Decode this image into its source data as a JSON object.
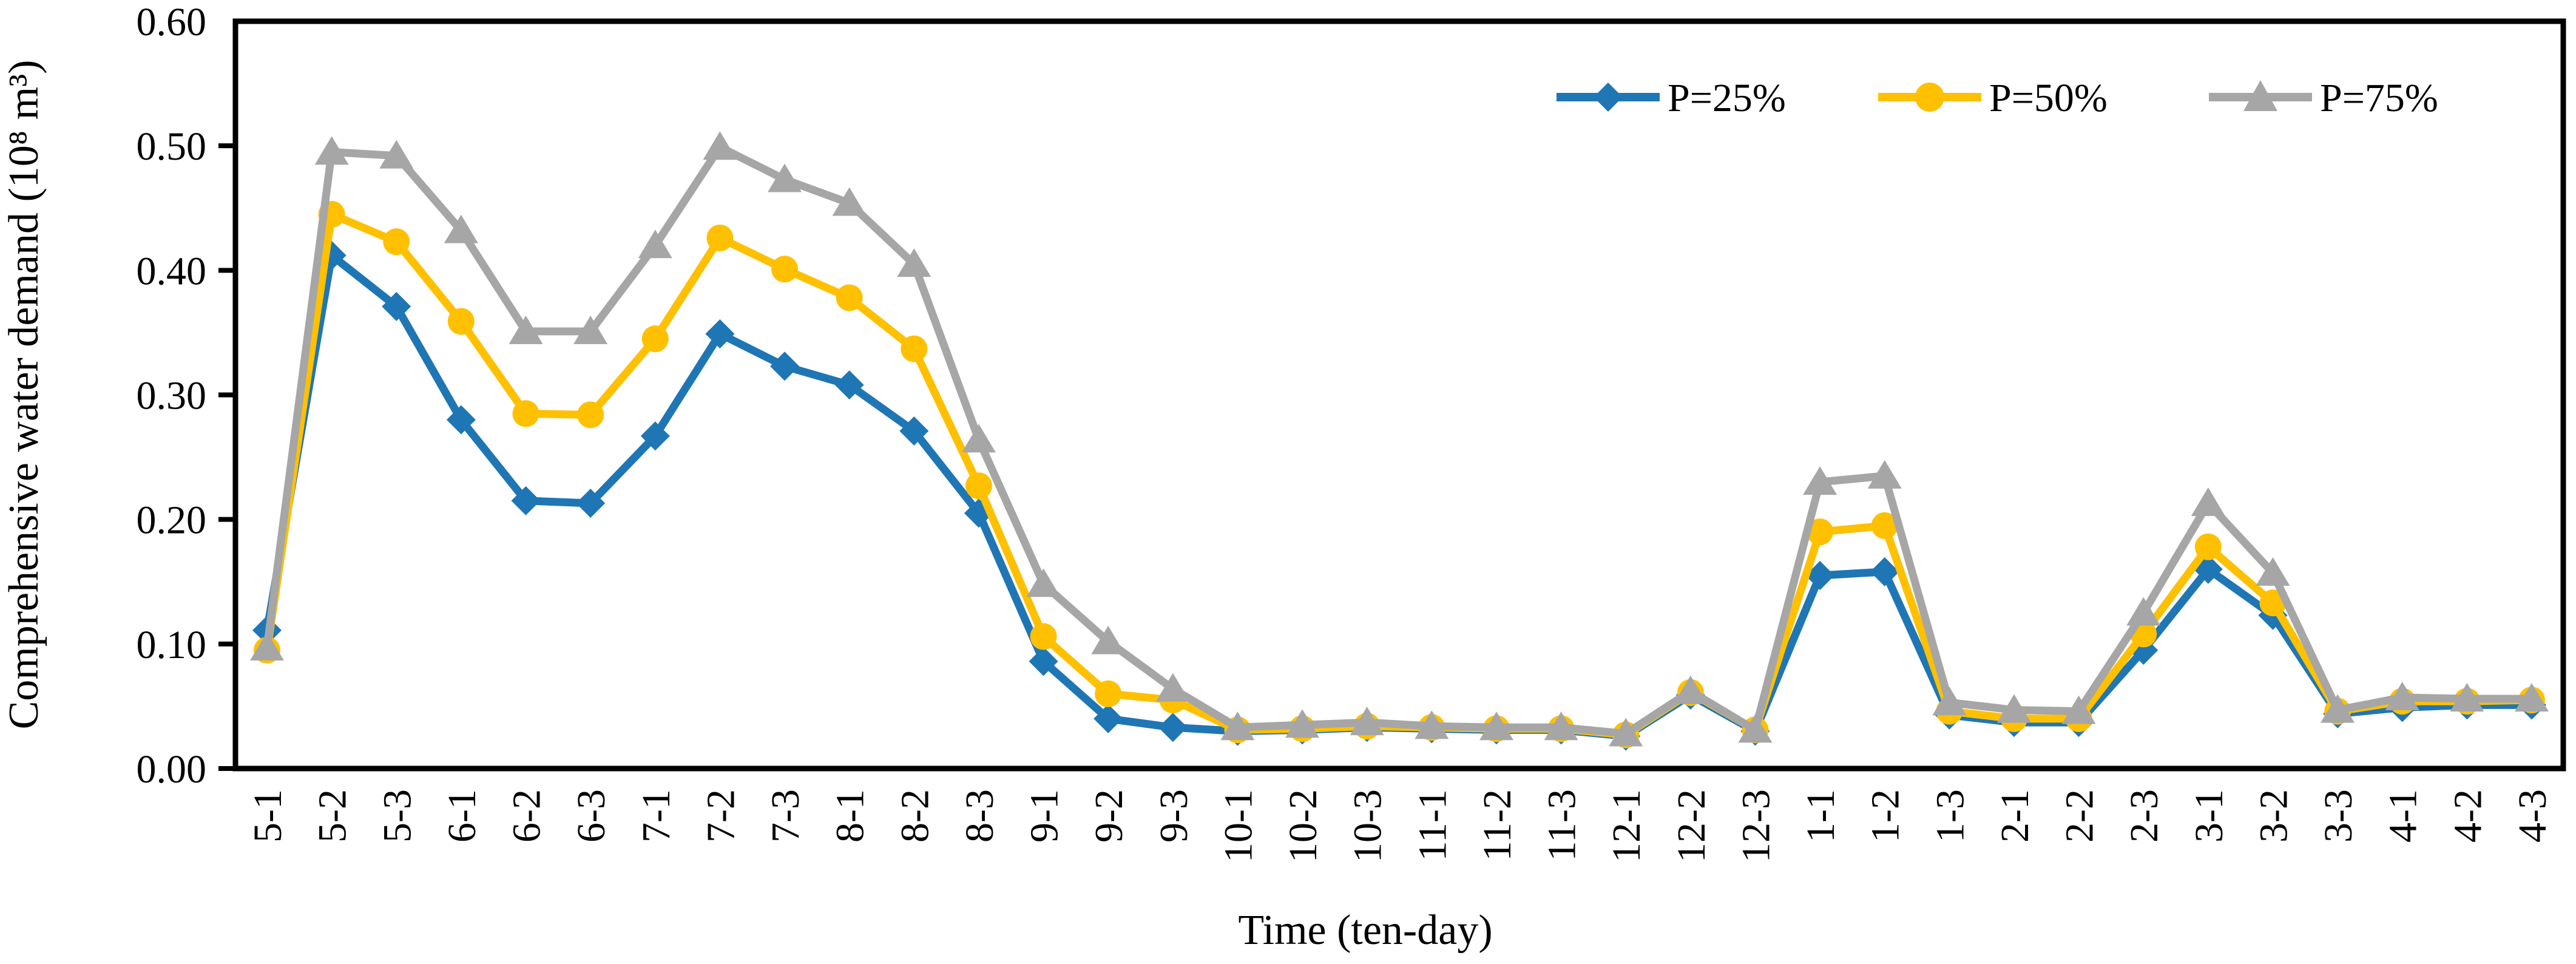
{
  "figure": {
    "background": "#FFFFFF",
    "text_color": "#000000"
  },
  "chart_data": {
    "type": "line",
    "title": "",
    "xlabel": "Time (ten-day)",
    "ylabel": "Comprehensive water demand (10⁸ m³)",
    "ylim": [
      0,
      0.6
    ],
    "ytick_step": 0.1,
    "ytick_labels": [
      "0.00",
      "0.10",
      "0.20",
      "0.30",
      "0.40",
      "0.50",
      "0.60"
    ],
    "grid": false,
    "legend_position": "top-right-inside",
    "categories": [
      "5-1",
      "5-2",
      "5-3",
      "6-1",
      "6-2",
      "6-3",
      "7-1",
      "7-2",
      "7-3",
      "8-1",
      "8-2",
      "8-3",
      "9-1",
      "9-2",
      "9-3",
      "10-1",
      "10-2",
      "10-3",
      "11-1",
      "11-2",
      "11-3",
      "12-1",
      "12-2",
      "12-3",
      "1-1",
      "1-2",
      "1-3",
      "2-1",
      "2-2",
      "2-3",
      "3-1",
      "3-2",
      "3-3",
      "4-1",
      "4-2",
      "4-3"
    ],
    "series": [
      {
        "name": "P=25%",
        "color": "#1F76B4",
        "marker": "diamond",
        "values": [
          0.111,
          0.412,
          0.371,
          0.28,
          0.215,
          0.213,
          0.267,
          0.349,
          0.323,
          0.308,
          0.271,
          0.205,
          0.086,
          0.04,
          0.033,
          0.03,
          0.031,
          0.033,
          0.032,
          0.031,
          0.031,
          0.026,
          0.059,
          0.03,
          0.155,
          0.158,
          0.043,
          0.037,
          0.037,
          0.095,
          0.16,
          0.123,
          0.044,
          0.049,
          0.051,
          0.051
        ]
      },
      {
        "name": "P=50%",
        "color": "#FFC000",
        "marker": "circle",
        "values": [
          0.095,
          0.445,
          0.423,
          0.359,
          0.285,
          0.284,
          0.345,
          0.426,
          0.401,
          0.378,
          0.337,
          0.227,
          0.106,
          0.06,
          0.055,
          0.031,
          0.032,
          0.034,
          0.033,
          0.032,
          0.032,
          0.027,
          0.061,
          0.031,
          0.19,
          0.195,
          0.046,
          0.04,
          0.04,
          0.108,
          0.178,
          0.133,
          0.046,
          0.054,
          0.054,
          0.055
        ]
      },
      {
        "name": "P=75%",
        "color": "#A6A6A6",
        "marker": "triangle",
        "values": [
          0.097,
          0.495,
          0.492,
          0.432,
          0.351,
          0.351,
          0.42,
          0.499,
          0.473,
          0.454,
          0.405,
          0.264,
          0.148,
          0.102,
          0.064,
          0.033,
          0.035,
          0.037,
          0.034,
          0.033,
          0.033,
          0.028,
          0.062,
          0.031,
          0.23,
          0.235,
          0.053,
          0.047,
          0.046,
          0.125,
          0.213,
          0.157,
          0.047,
          0.057,
          0.056,
          0.056
        ]
      }
    ]
  }
}
